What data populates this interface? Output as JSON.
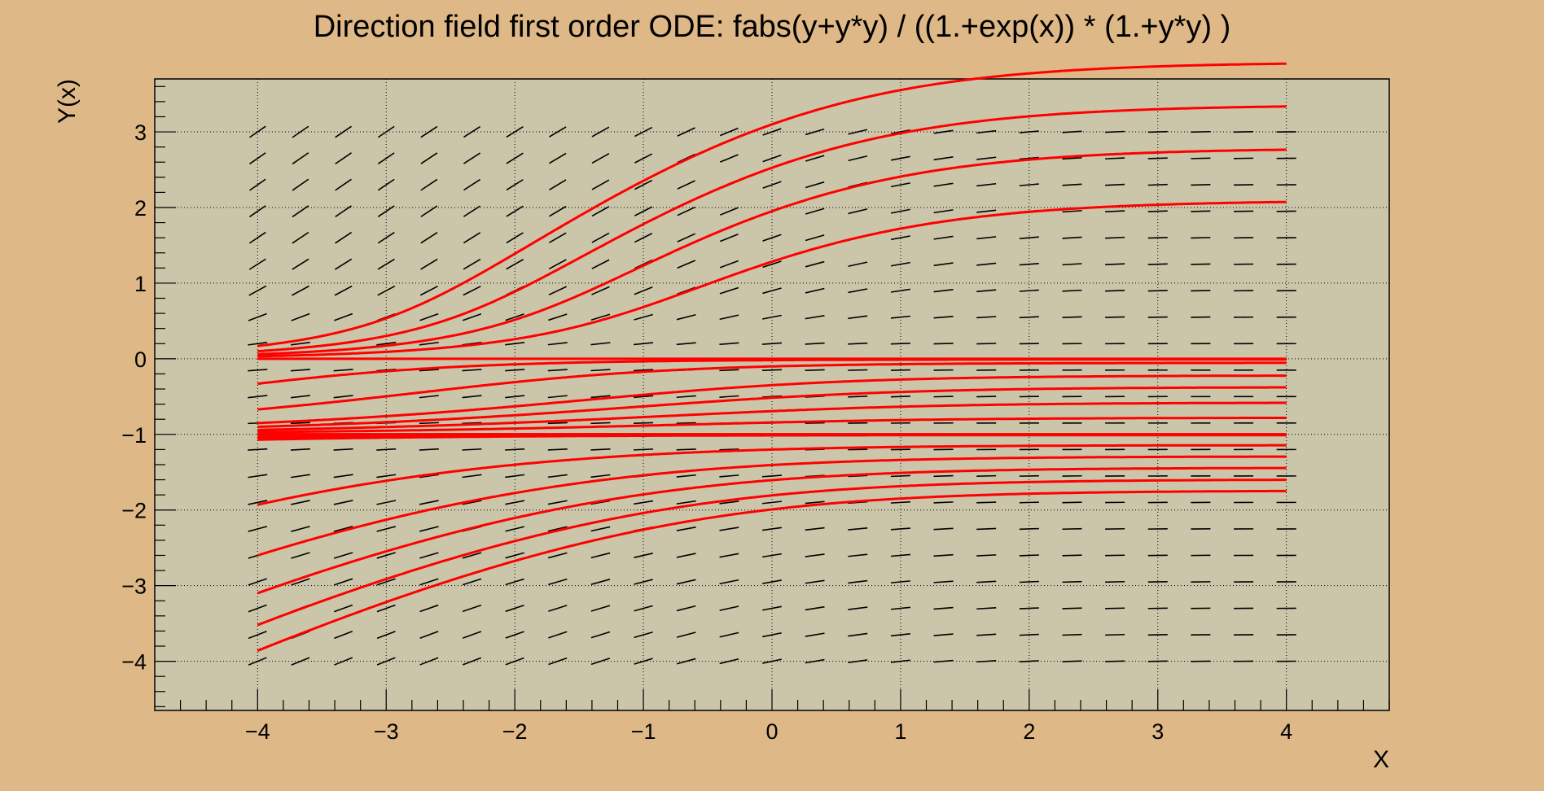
{
  "chart_data": {
    "type": "line",
    "title": "Direction field first order ODE: fabs(y+y*y) / ((1.+exp(x)) * (1.+y*y) )",
    "xlabel": "X",
    "ylabel": "Y(x)",
    "xlim": [
      -4.8,
      4.8
    ],
    "ylim": [
      -4.65,
      3.7
    ],
    "grid": true,
    "x_ticks": [
      -4,
      -3,
      -2,
      -1,
      0,
      1,
      2,
      3,
      4
    ],
    "x_tick_labels": [
      "−4",
      "−3",
      "−2",
      "−1",
      "0",
      "1",
      "2",
      "3",
      "4"
    ],
    "y_ticks": [
      -4,
      -3,
      -2,
      -1,
      0,
      1,
      2,
      3
    ],
    "y_tick_labels": [
      "−4",
      "−3",
      "−2",
      "−1",
      "0",
      "1",
      "2",
      "3"
    ],
    "field_x_range": [
      -4,
      4
    ],
    "field_y_range": [
      -4,
      3
    ],
    "field_nx": 25,
    "field_ny": 21,
    "solution_x_range": [
      -4,
      4
    ],
    "solution_start_y": [
      0.0,
      0.033,
      0.06,
      0.1,
      0.17,
      -0.33,
      -0.67,
      -1.0,
      -0.85,
      -0.9,
      -0.94,
      -0.97,
      -1.0,
      -1.0,
      -1.02,
      -1.05,
      -1.07,
      -1.93,
      -2.6,
      -3.1,
      -3.52,
      -3.86
    ],
    "field_color": "#000000",
    "solution_color": "#ff0000",
    "plot_background": "#cbc5a9",
    "page_background": "#deb887"
  }
}
